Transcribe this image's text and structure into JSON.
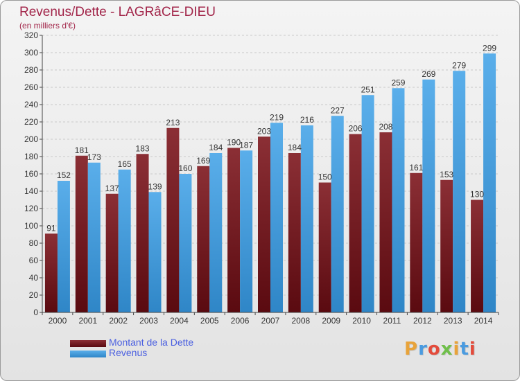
{
  "header": {
    "title": "Revenus/Dette - LAGRâCE-DIEU",
    "subtitle": "(en milliers d'€)"
  },
  "legend": [
    {
      "label": "Montant de la Dette"
    },
    {
      "label": "Revenus"
    }
  ],
  "logo": {
    "text": "Proxiti",
    "colors": [
      "#e8a33a",
      "#4a9be0",
      "#e34b3b",
      "#6fbf4a",
      "#e8a33a",
      "#4a9be0",
      "#e34b3b"
    ]
  },
  "colors": {
    "dette_top": "#8b2f35",
    "dette_bottom": "#5a0a10",
    "revenus_top": "#5aaeea",
    "revenus_bottom": "#2f86c7",
    "title": "#a2264a",
    "legend_text": "#4a5fe0"
  },
  "chart_data": {
    "type": "bar",
    "title": "Revenus/Dette - LAGRâCE-DIEU",
    "subtitle": "(en milliers d'€)",
    "categories": [
      "2000",
      "2001",
      "2002",
      "2003",
      "2004",
      "2005",
      "2006",
      "2007",
      "2008",
      "2009",
      "2010",
      "2011",
      "2012",
      "2013",
      "2014"
    ],
    "series": [
      {
        "name": "Montant de la Dette",
        "values": [
          91,
          181,
          137,
          183,
          213,
          169,
          190,
          203,
          184,
          150,
          206,
          208,
          161,
          153,
          130
        ]
      },
      {
        "name": "Revenus",
        "values": [
          152,
          173,
          165,
          139,
          160,
          184,
          187,
          219,
          216,
          227,
          251,
          259,
          269,
          279,
          299
        ]
      }
    ],
    "ylim": [
      0,
      320
    ],
    "yticks": [
      0,
      20,
      40,
      60,
      80,
      100,
      120,
      140,
      160,
      180,
      200,
      220,
      240,
      260,
      280,
      300,
      320
    ],
    "grid": true,
    "legend_position": "bottom-left"
  }
}
